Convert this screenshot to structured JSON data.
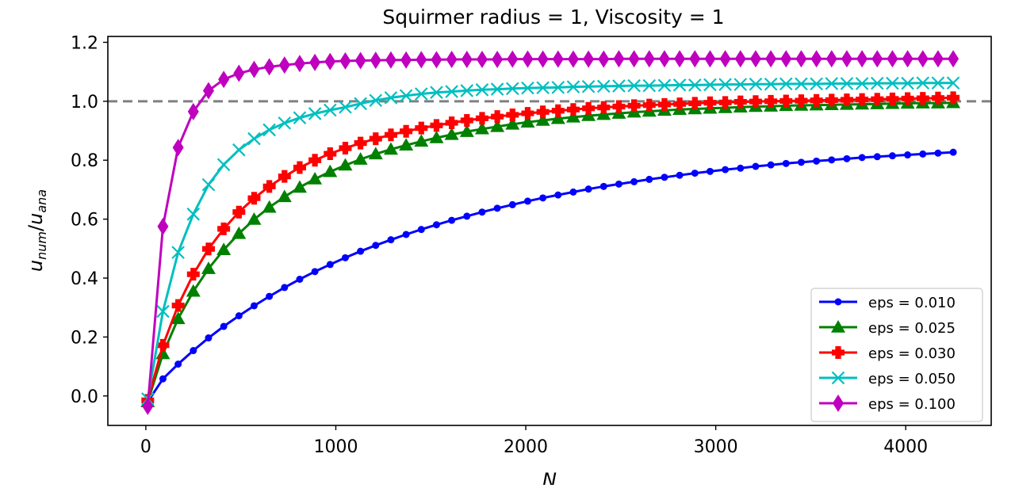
{
  "chart_data": {
    "type": "line",
    "title": "Squirmer radius = 1, Viscosity = 1",
    "xlabel": "N",
    "ylabel": {
      "base": "u",
      "num_sub": "num",
      "slash": "/",
      "ana_sub": "ana"
    },
    "xlim": [
      -200,
      4450
    ],
    "ylim": [
      -0.1,
      1.22
    ],
    "x_ticks": [
      0,
      1000,
      2000,
      3000,
      4000
    ],
    "x_tick_labels": [
      "0",
      "1000",
      "2000",
      "3000",
      "4000"
    ],
    "y_ticks": [
      0.0,
      0.2,
      0.4,
      0.6,
      0.8,
      1.0,
      1.2
    ],
    "y_tick_labels": [
      "0.0",
      "0.2",
      "0.4",
      "0.6",
      "0.8",
      "1.0",
      "1.2"
    ],
    "grid": false,
    "legend_position": "lower-right",
    "reference_line": {
      "y": 1.0,
      "style": "dashed",
      "color": "#808080"
    },
    "x": [
      10,
      90,
      170,
      250,
      330,
      410,
      490,
      570,
      650,
      730,
      810,
      890,
      970,
      1050,
      1130,
      1210,
      1290,
      1370,
      1450,
      1530,
      1610,
      1690,
      1770,
      1850,
      1930,
      2010,
      2090,
      2170,
      2250,
      2330,
      2410,
      2490,
      2570,
      2650,
      2730,
      2810,
      2890,
      2970,
      3050,
      3130,
      3210,
      3290,
      3370,
      3450,
      3530,
      3610,
      3690,
      3770,
      3850,
      3930,
      4010,
      4090,
      4170,
      4250
    ],
    "series": [
      {
        "name": "eps = 0.010",
        "color": "#0000ff",
        "marker": "dot",
        "values": [
          -0.02,
          0.058,
          0.108,
          0.154,
          0.197,
          0.236,
          0.272,
          0.306,
          0.338,
          0.368,
          0.396,
          0.422,
          0.446,
          0.469,
          0.491,
          0.511,
          0.53,
          0.548,
          0.565,
          0.581,
          0.596,
          0.61,
          0.624,
          0.637,
          0.649,
          0.661,
          0.672,
          0.682,
          0.692,
          0.702,
          0.711,
          0.719,
          0.727,
          0.735,
          0.742,
          0.749,
          0.756,
          0.762,
          0.768,
          0.773,
          0.779,
          0.784,
          0.789,
          0.793,
          0.797,
          0.801,
          0.805,
          0.809,
          0.812,
          0.815,
          0.818,
          0.821,
          0.824,
          0.827
        ]
      },
      {
        "name": "eps = 0.025",
        "color": "#008000",
        "marker": "triangle",
        "values": [
          -0.02,
          0.143,
          0.262,
          0.355,
          0.432,
          0.496,
          0.551,
          0.599,
          0.64,
          0.676,
          0.708,
          0.736,
          0.761,
          0.783,
          0.803,
          0.821,
          0.837,
          0.851,
          0.864,
          0.876,
          0.887,
          0.897,
          0.906,
          0.914,
          0.922,
          0.929,
          0.935,
          0.941,
          0.946,
          0.951,
          0.955,
          0.959,
          0.963,
          0.966,
          0.969,
          0.972,
          0.974,
          0.976,
          0.978,
          0.98,
          0.982,
          0.983,
          0.985,
          0.986,
          0.987,
          0.988,
          0.989,
          0.99,
          0.991,
          0.992,
          0.993,
          0.994,
          0.994,
          0.995
        ]
      },
      {
        "name": "eps = 0.030",
        "color": "#ff0000",
        "marker": "plus",
        "values": [
          -0.015,
          0.172,
          0.307,
          0.413,
          0.499,
          0.567,
          0.624,
          0.671,
          0.711,
          0.745,
          0.775,
          0.8,
          0.822,
          0.841,
          0.858,
          0.873,
          0.886,
          0.898,
          0.909,
          0.918,
          0.927,
          0.935,
          0.942,
          0.948,
          0.954,
          0.959,
          0.964,
          0.968,
          0.972,
          0.976,
          0.979,
          0.982,
          0.985,
          0.987,
          0.989,
          0.991,
          0.993,
          0.995,
          0.996,
          0.998,
          0.999,
          1.0,
          1.001,
          1.002,
          1.003,
          1.004,
          1.005,
          1.006,
          1.007,
          1.008,
          1.009,
          1.01,
          1.011,
          1.012
        ]
      },
      {
        "name": "eps = 0.050",
        "color": "#00bfbf",
        "marker": "x",
        "values": [
          -0.01,
          0.287,
          0.487,
          0.617,
          0.717,
          0.785,
          0.835,
          0.873,
          0.903,
          0.926,
          0.944,
          0.958,
          0.97,
          0.98,
          0.992,
          1.003,
          1.012,
          1.019,
          1.025,
          1.03,
          1.033,
          1.036,
          1.039,
          1.041,
          1.043,
          1.045,
          1.046,
          1.047,
          1.049,
          1.05,
          1.051,
          1.052,
          1.053,
          1.053,
          1.054,
          1.055,
          1.055,
          1.056,
          1.057,
          1.057,
          1.058,
          1.058,
          1.059,
          1.059,
          1.059,
          1.06,
          1.06,
          1.06,
          1.061,
          1.061,
          1.061,
          1.062,
          1.062,
          1.062
        ]
      },
      {
        "name": "eps = 0.100",
        "color": "#bf00bf",
        "marker": "diamond",
        "values": [
          -0.035,
          0.575,
          0.843,
          0.965,
          1.036,
          1.074,
          1.095,
          1.108,
          1.117,
          1.123,
          1.128,
          1.132,
          1.135,
          1.137,
          1.138,
          1.139,
          1.14,
          1.14,
          1.141,
          1.141,
          1.142,
          1.142,
          1.142,
          1.142,
          1.143,
          1.143,
          1.143,
          1.143,
          1.143,
          1.143,
          1.143,
          1.144,
          1.144,
          1.144,
          1.144,
          1.144,
          1.144,
          1.144,
          1.144,
          1.144,
          1.144,
          1.144,
          1.144,
          1.144,
          1.144,
          1.144,
          1.144,
          1.144,
          1.144,
          1.144,
          1.144,
          1.144,
          1.144,
          1.144
        ]
      }
    ]
  }
}
